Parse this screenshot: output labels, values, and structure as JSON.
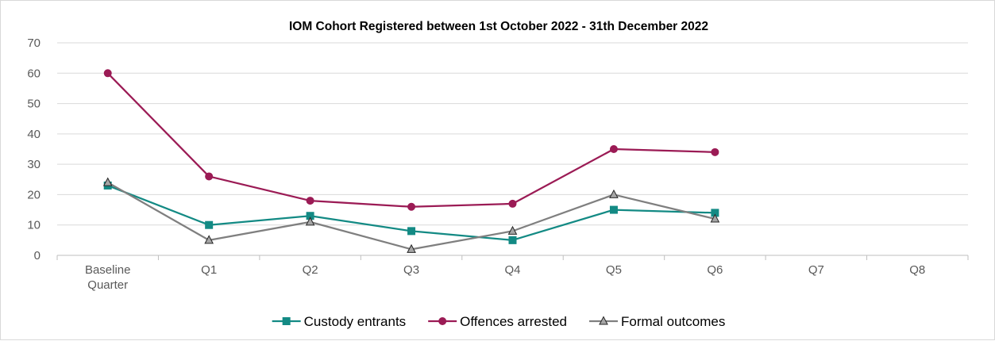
{
  "chart_data": {
    "type": "line",
    "title": "IOM Cohort Registered between 1st October 2022 - 31th December 2022",
    "categories": [
      [
        "Baseline",
        "Quarter"
      ],
      [
        "Q1"
      ],
      [
        "Q2"
      ],
      [
        "Q3"
      ],
      [
        "Q4"
      ],
      [
        "Q5"
      ],
      [
        "Q6"
      ],
      [
        "Q7"
      ],
      [
        "Q8"
      ]
    ],
    "ylim": [
      0,
      70
    ],
    "yticks": [
      0,
      10,
      20,
      30,
      40,
      50,
      60,
      70
    ],
    "grid": true,
    "legend_position": "bottom",
    "series": [
      {
        "name": "Custody entrants",
        "color": "#138a84",
        "marker": "square",
        "values": [
          23,
          10,
          13,
          8,
          5,
          15,
          14,
          null,
          null
        ]
      },
      {
        "name": "Offences arrested",
        "color": "#9b1b55",
        "marker": "circle",
        "values": [
          60,
          26,
          18,
          16,
          17,
          35,
          34,
          null,
          null
        ]
      },
      {
        "name": "Formal outcomes",
        "color": "#7f7f7f",
        "marker": "triangle",
        "values": [
          24,
          5,
          11,
          2,
          8,
          20,
          12,
          null,
          null
        ]
      }
    ]
  }
}
